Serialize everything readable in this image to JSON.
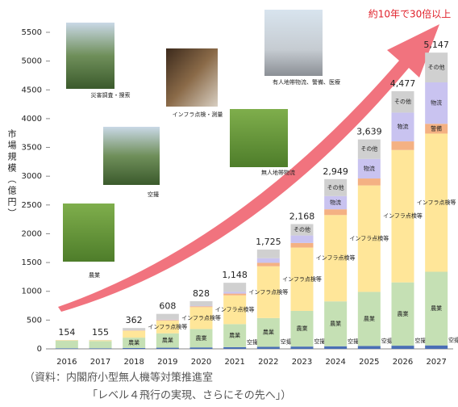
{
  "chart_data": {
    "type": "stacked_bar",
    "y_label": "市場規模（億円）",
    "annotation": "約10年で30倍以上",
    "source_line1": "（資料：内閣府小型無人機等対策推進室",
    "source_line2": "「レベル４飛行の実現、さらにその先へ」）",
    "photo_captions": [
      "災害調査・捜索",
      "空撮",
      "農業",
      "インフラ点検・測量",
      "無人地帯物流",
      "有人地帯物流、警備、医療"
    ],
    "categories": [
      "2016",
      "2017",
      "2018",
      "2019",
      "2020",
      "2021",
      "2022",
      "2023",
      "2024",
      "2025",
      "2026",
      "2027"
    ],
    "totals": [
      154,
      155,
      362,
      608,
      828,
      1148,
      1725,
      2168,
      2949,
      3639,
      4477,
      5147
    ],
    "totals_labels": [
      "154",
      "155",
      "362",
      "608",
      "828",
      "1,148",
      "1,725",
      "2,168",
      "2,949",
      "3,639",
      "4,477",
      "5,147"
    ],
    "series": [
      {
        "name": "空撮",
        "color": "#4a6fb5",
        "values": [
          10,
          10,
          15,
          20,
          25,
          30,
          35,
          40,
          45,
          50,
          55,
          60
        ]
      },
      {
        "name": "農業",
        "color": "#c5e0b4",
        "values": [
          130,
          125,
          180,
          250,
          320,
          400,
          500,
          620,
          780,
          940,
          1100,
          1280
        ]
      },
      {
        "name": "インフラ点検等",
        "color": "#ffe699",
        "values": [
          10,
          15,
          120,
          220,
          380,
          500,
          900,
          1100,
          1500,
          1850,
          2300,
          2400
        ]
      },
      {
        "name": "警備",
        "color": "#f4b183",
        "values": [
          0,
          0,
          5,
          10,
          15,
          30,
          60,
          80,
          100,
          120,
          150,
          170
        ]
      },
      {
        "name": "物流",
        "color": "#c9c3f0",
        "values": [
          0,
          0,
          2,
          8,
          10,
          30,
          80,
          130,
          230,
          340,
          500,
          720
        ]
      },
      {
        "name": "その他",
        "color": "#d0d0d0",
        "values": [
          4,
          5,
          40,
          100,
          78,
          158,
          150,
          198,
          294,
          339,
          372,
          517
        ]
      }
    ],
    "ylim": [
      0,
      5500
    ],
    "yticks": [
      0,
      500,
      1000,
      1500,
      2000,
      2500,
      3000,
      3500,
      4000,
      4500,
      5000,
      5500
    ],
    "grid": false
  }
}
